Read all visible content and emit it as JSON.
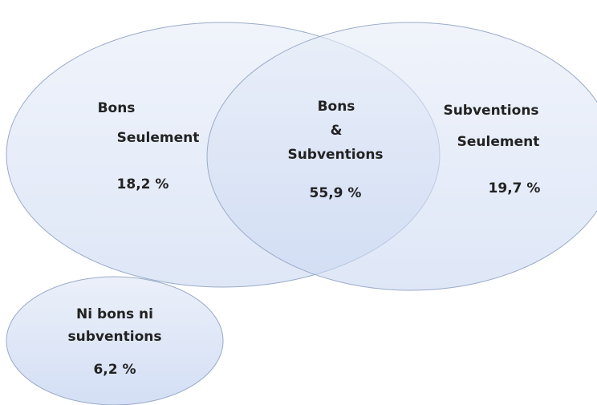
{
  "regions": [
    {
      "lines": [
        "Bons",
        "Seulement"
      ],
      "value": "18,2 %"
    },
    {
      "lines": [
        "Bons",
        "&",
        "Subventions"
      ],
      "value": "55,9 %"
    },
    {
      "lines": [
        "Subventions",
        "Seulement"
      ],
      "value": "19,7 %"
    },
    {
      "lines": [
        "Ni bons ni",
        "subventions"
      ],
      "value": "6,2 %"
    }
  ]
}
